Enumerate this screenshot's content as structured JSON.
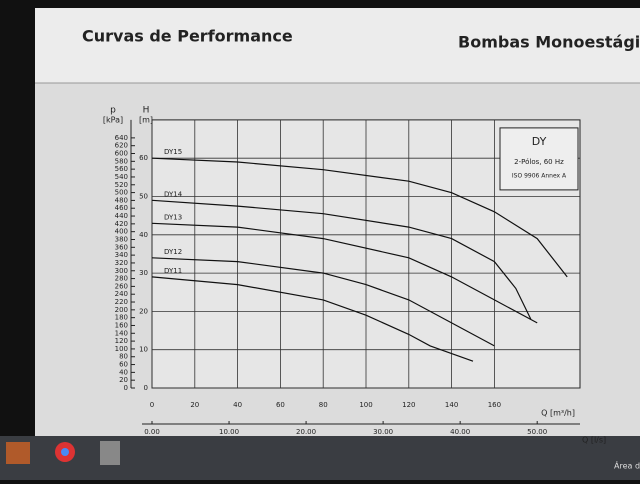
{
  "header": {
    "title": "Curvas de Performance",
    "right_title": "Bombas Monoestágic"
  },
  "chart_data": {
    "type": "line",
    "legend_box": {
      "title": "DY",
      "line1": "2-Pólos, 60 Hz",
      "line2": "ISO 9906 Annex A"
    },
    "y_label_unit": "[m]",
    "y_label": "H",
    "y2_label": "p",
    "y2_label_unit": "[kPa]",
    "x_label": "Q [m³/h]",
    "x2_label": "Q [l/s]",
    "xlim": [
      0,
      200
    ],
    "xticks": [
      0,
      20,
      40,
      60,
      80,
      100,
      120,
      140,
      160
    ],
    "x2lim": [
      0,
      55.556
    ],
    "x2ticks": [
      {
        "value": 0,
        "label": "0.00"
      },
      {
        "value": 10,
        "label": "10.00"
      },
      {
        "value": 20,
        "label": "20.00"
      },
      {
        "value": 30,
        "label": "30.00"
      },
      {
        "value": 40,
        "label": "40.00"
      },
      {
        "value": 50,
        "label": "50.00"
      }
    ],
    "ylim": [
      0,
      70
    ],
    "yticks": [
      0,
      10,
      20,
      30,
      40,
      50,
      60
    ],
    "y2lim": [
      0,
      686
    ],
    "y2ticks": [
      0,
      20,
      40,
      60,
      80,
      100,
      120,
      140,
      160,
      180,
      200,
      220,
      240,
      260,
      280,
      300,
      320,
      340,
      360,
      380,
      400,
      420,
      440,
      460,
      480,
      500,
      520,
      540,
      560,
      580,
      600,
      620,
      640
    ],
    "grid": true,
    "series": [
      {
        "name": "DY15",
        "color": "#111111",
        "x": [
          0,
          40,
          80,
          120,
          140,
          160,
          180,
          194
        ],
        "values": [
          60,
          59,
          57,
          54,
          51,
          46,
          39,
          29
        ]
      },
      {
        "name": "DY14",
        "color": "#111111",
        "x": [
          0,
          40,
          80,
          120,
          140,
          160,
          170,
          177
        ],
        "values": [
          49,
          47.5,
          45.5,
          42,
          39,
          33,
          26,
          18
        ]
      },
      {
        "name": "DY13",
        "color": "#111111",
        "x": [
          0,
          40,
          80,
          120,
          140,
          160,
          180
        ],
        "values": [
          43,
          42,
          39,
          34,
          29,
          23,
          17
        ]
      },
      {
        "name": "DY12",
        "color": "#111111",
        "x": [
          0,
          40,
          80,
          100,
          120,
          140,
          160
        ],
        "values": [
          34,
          33,
          30,
          27,
          23,
          17,
          11
        ]
      },
      {
        "name": "DY11",
        "color": "#111111",
        "x": [
          0,
          40,
          80,
          100,
          120,
          130,
          150
        ],
        "values": [
          29,
          27,
          23,
          19,
          14,
          11,
          7
        ]
      }
    ]
  },
  "taskbar": {
    "text": "Área d"
  }
}
